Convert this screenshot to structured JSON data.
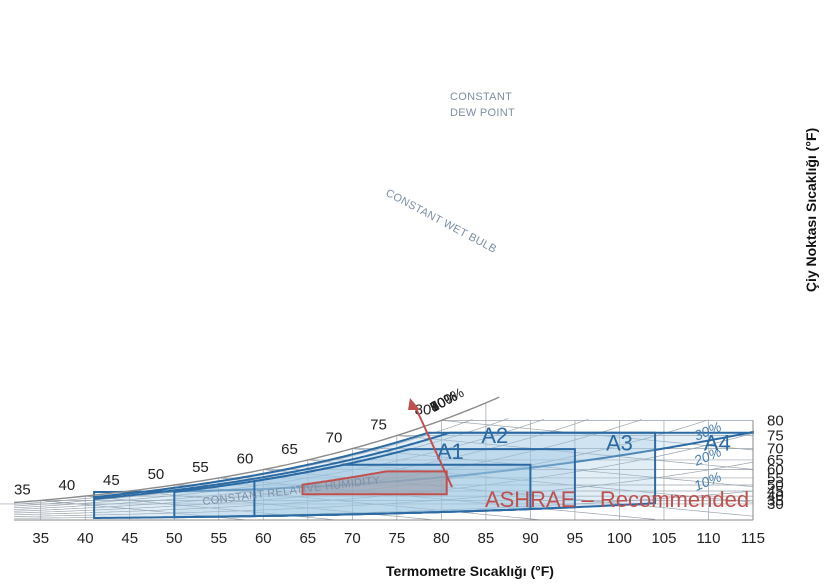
{
  "chart_data": {
    "type": "psychrometric",
    "x_axis": {
      "label": "Termometre Sıcaklığı (°F)",
      "ticks": [
        "35",
        "40",
        "45",
        "50",
        "55",
        "60",
        "65",
        "70",
        "75",
        "80",
        "85",
        "90",
        "95",
        "100",
        "105",
        "110",
        "115"
      ],
      "range": [
        32,
        115
      ]
    },
    "y_axis": {
      "label": "Çiy Noktası Sıcaklığı (°F)",
      "ticks": [
        "30",
        "35",
        "40",
        "45",
        "50",
        "55",
        "60",
        "65",
        "70",
        "75",
        "80"
      ]
    },
    "saturation_ticks": [
      "35",
      "40",
      "45",
      "50",
      "55",
      "60",
      "65",
      "70",
      "75",
      "80"
    ],
    "rh_top_labels": [
      "100%",
      "90%",
      "80%",
      "70%",
      "60%",
      "50%",
      "40%"
    ],
    "rh_inner_labels": [
      "30%",
      "20%",
      "10%"
    ],
    "rh_values": [
      100,
      90,
      80,
      70,
      60,
      50,
      40,
      30,
      20,
      10
    ],
    "zones": [
      {
        "name": "A4",
        "dry_bulb": [
          41,
          115
        ],
        "dew_point_max": 76,
        "dew_point_min": 12
      },
      {
        "name": "A3",
        "dry_bulb": [
          41,
          104
        ],
        "dew_point_max": 76,
        "rh_max": 85,
        "rh_min": 8
      },
      {
        "name": "A2",
        "dry_bulb": [
          50,
          95
        ],
        "dew_point_max": 69.8,
        "rh_max": 80,
        "rh_min": 8
      },
      {
        "name": "A1",
        "dry_bulb": [
          59,
          90
        ],
        "dew_point_max": 62.6,
        "rh_max": 80,
        "rh_min": 8
      },
      {
        "name": "ASHRAE – Recommended",
        "dry_bulb": [
          64.4,
          80.6
        ],
        "dew_point_max": 59,
        "dew_point_min": 41.9,
        "rh_max": 60
      }
    ],
    "annotations": [
      "CONSTANT DEW POINT",
      "CONSTANT WET BULB",
      "CONSTANT RELATIVE HUMIDITY"
    ],
    "colors": {
      "zone_stroke": "#2b6aa3",
      "zone_fill": "#9fc6e2",
      "ashrae_stroke": "#c0504d",
      "ashrae_fill": "#9a9eab",
      "grid": "#9aa3ad"
    }
  }
}
